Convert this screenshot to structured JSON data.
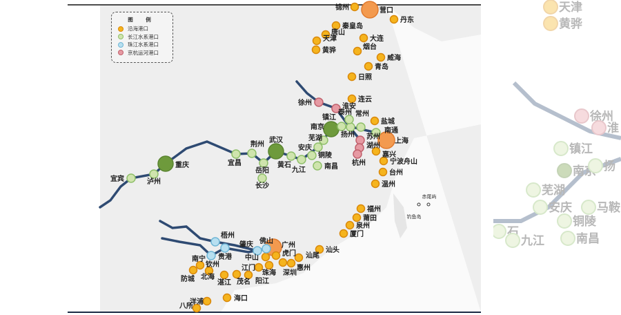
{
  "legend": {
    "title": "图 例",
    "items": [
      {
        "label": "沿海港口",
        "color": "#f5b41e",
        "border": "#d9880a"
      },
      {
        "label": "长江水系港口",
        "color": "#cfe4ad",
        "border": "#8fbf6a"
      },
      {
        "label": "珠江水系港口",
        "color": "#b7dff0",
        "border": "#6fb6d6"
      },
      {
        "label": "京杭运河港口",
        "color": "#e69aa3",
        "border": "#c0606c"
      }
    ]
  },
  "colors": {
    "coastal": "#f5b41e",
    "coastal_major": "#f39a4f",
    "yangtze": "#cfe4ad",
    "yangtze_major": "#6e9a3c",
    "pearl": "#b7dff0",
    "canal": "#e69aa3",
    "river": "#2e4a72",
    "land": "#eeeeee"
  },
  "ports": [
    "锦州",
    "营口",
    "丹东",
    "秦皇岛",
    "唐山",
    "大连",
    "天津",
    "黄骅",
    "烟台",
    "威海",
    "青岛",
    "日照",
    "连云",
    "盐城",
    "上海",
    "嘉兴",
    "宁波舟山",
    "台州",
    "温州",
    "福州",
    "莆田",
    "泉州",
    "厦门",
    "汕头",
    "广州",
    "虎门",
    "汕尾",
    "惠州",
    "深圳",
    "珠海",
    "中山",
    "江门",
    "阳江",
    "茂名",
    "湛江",
    "北海",
    "钦州",
    "防城",
    "海口",
    "洋浦",
    "八所",
    "宜宾",
    "泸州",
    "重庆",
    "宜昌",
    "荆州",
    "武汉",
    "岳阳",
    "长沙",
    "黄石",
    "九江",
    "安庆",
    "铜陵",
    "芜湖",
    "南昌",
    "南京",
    "镇江",
    "扬州",
    "泰州",
    "常州",
    "南通",
    "南宁",
    "贵港",
    "梧州",
    "肇庆",
    "佛山",
    "徐州",
    "淮安",
    "苏州",
    "湖州",
    "杭州"
  ],
  "islands": [
    "赤尾屿",
    "钓鱼岛"
  ],
  "faded_labels": [
    "天津",
    "黄骅",
    "徐州",
    "淮",
    "镇江",
    "南京",
    "扬",
    "芜湖",
    "安庆",
    "马鞍山",
    "铜陵",
    "石",
    "九江",
    "南昌"
  ]
}
